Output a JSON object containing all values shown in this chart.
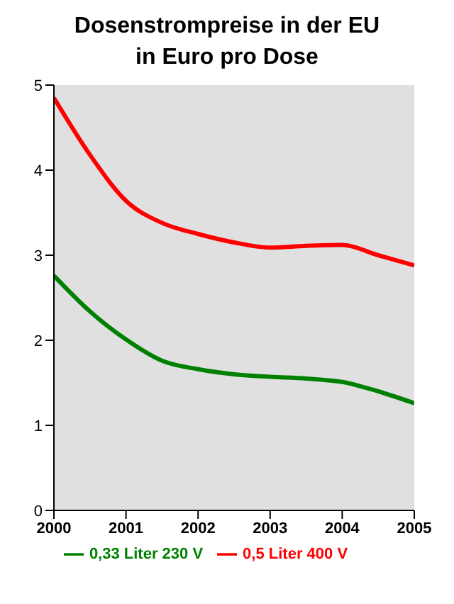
{
  "chart_data": {
    "type": "line",
    "title": "Dosenstrompreise in der EU",
    "subtitle": "in Euro pro Dose",
    "x": [
      2000,
      2000.5,
      2001,
      2001.5,
      2002,
      2002.5,
      2003,
      2003.5,
      2004,
      2004.5,
      2005
    ],
    "series": [
      {
        "name": "0,33 Liter 230 V",
        "color": "#008000",
        "values": [
          2.76,
          2.34,
          2.01,
          1.76,
          1.66,
          1.6,
          1.57,
          1.55,
          1.51,
          1.4,
          1.26
        ]
      },
      {
        "name": "0,5 Liter 400 V",
        "color": "#ff0000",
        "values": [
          4.85,
          4.18,
          3.64,
          3.38,
          3.25,
          3.15,
          3.09,
          3.11,
          3.12,
          3.0,
          2.88
        ]
      }
    ],
    "xlim": [
      2000,
      2005
    ],
    "xticks": [
      2000,
      2001,
      2002,
      2003,
      2004,
      2005
    ],
    "ylim": [
      0,
      5
    ],
    "yticks": [
      0,
      1,
      2,
      3,
      4,
      5
    ],
    "grid": false,
    "legend": "bottom",
    "marker": "none",
    "line_style": "solid"
  }
}
